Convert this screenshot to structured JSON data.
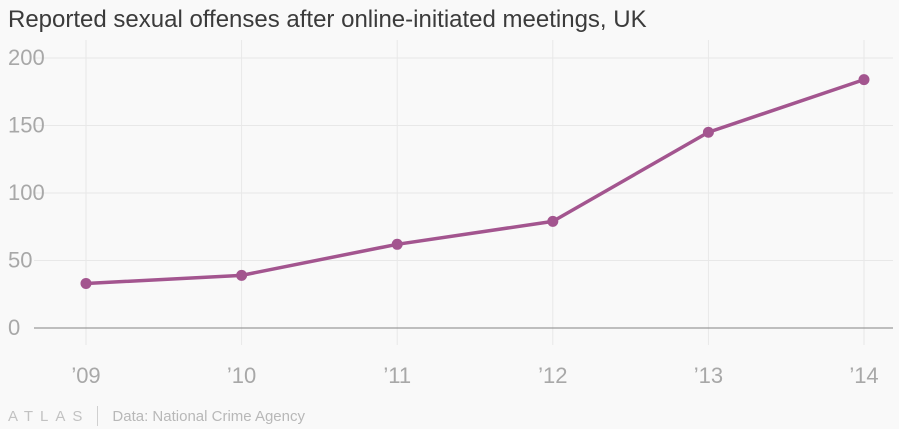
{
  "title": "Reported sexual offenses after online-initiated meetings, UK",
  "footer": {
    "brand": "ATLAS",
    "source": "Data: National Crime Agency"
  },
  "colors": {
    "line": "#a3558f",
    "grid": "#e8e8e8",
    "baseline": "#9a9a9a",
    "tick_text": "#a8a8a8"
  },
  "chart_data": {
    "type": "line",
    "title": "Reported sexual offenses after online-initiated meetings, UK",
    "xlabel": "",
    "ylabel": "",
    "categories": [
      "’09",
      "’10",
      "’11",
      "’12",
      "’13",
      "’14"
    ],
    "series": [
      {
        "values": [
          33,
          39,
          62,
          79,
          145,
          184
        ]
      }
    ],
    "ylim": [
      0,
      200
    ],
    "yticks": [
      0,
      50,
      100,
      150,
      200
    ],
    "grid": true,
    "legend": "none"
  }
}
